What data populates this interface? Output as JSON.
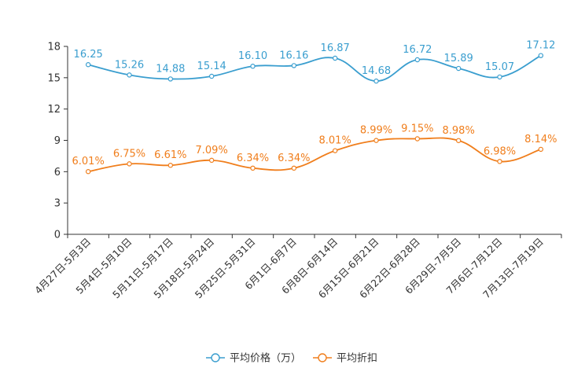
{
  "chart_data": {
    "type": "line",
    "categories": [
      "4月27日-5月3日",
      "5月4日-5月10日",
      "5月11日-5月17日",
      "5月18日-5月24日",
      "5月25日-5月31日",
      "6月1日-6月7日",
      "6月8日-6月14日",
      "6月15日-6月21日",
      "6月22日-6月28日",
      "6月29日-7月5日",
      "7月6日-7月12日",
      "7月13日-7月19日"
    ],
    "series": [
      {
        "name": "平均价格（万）",
        "color": "#3a9ecf",
        "values": [
          16.25,
          15.26,
          14.88,
          15.14,
          16.1,
          16.16,
          16.87,
          14.68,
          16.72,
          15.89,
          15.07,
          17.12
        ],
        "labels": [
          "16.25",
          "15.26",
          "14.88",
          "15.14",
          "16.10",
          "16.16",
          "16.87",
          "14.68",
          "16.72",
          "15.89",
          "15.07",
          "17.12"
        ]
      },
      {
        "name": "平均折扣",
        "color": "#f07e1c",
        "values": [
          6.01,
          6.75,
          6.61,
          7.09,
          6.34,
          6.34,
          8.01,
          8.99,
          9.15,
          8.98,
          6.98,
          8.14
        ],
        "labels": [
          "6.01%",
          "6.75%",
          "6.61%",
          "7.09%",
          "6.34%",
          "6.34%",
          "8.01%",
          "8.99%",
          "9.15%",
          "8.98%",
          "6.98%",
          "8.14%"
        ]
      }
    ],
    "ylim": [
      0,
      18
    ],
    "yticks": [
      0,
      3,
      6,
      9,
      12,
      15,
      18
    ],
    "ytick_labels": [
      "0",
      "3",
      "6",
      "9",
      "12",
      "15",
      "18"
    ],
    "grid": false,
    "legend": "bottom-center",
    "title": "",
    "xlabel": "",
    "ylabel": ""
  }
}
